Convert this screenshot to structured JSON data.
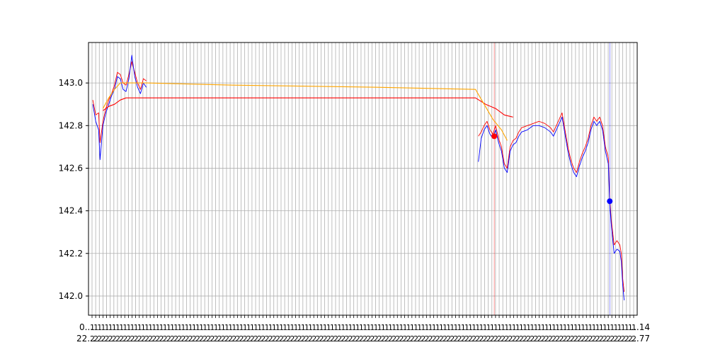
{
  "chart_data": {
    "type": "line",
    "title": "",
    "xlabel": "",
    "ylabel": "",
    "ylim": [
      141.91,
      143.19
    ],
    "y_ticks": [
      142.0,
      142.2,
      142.4,
      142.6,
      142.8,
      143.0
    ],
    "y_tick_labels": [
      "142.0",
      "142.2",
      "142.4",
      "142.6",
      "142.8",
      "143.0"
    ],
    "x_tick_label_rows": [
      "0...",
      "22...",
      "...14",
      "...77"
    ],
    "grid": true,
    "legend": "none",
    "series": [
      {
        "name": "price-high",
        "color": "#ff0000",
        "segments": [
          [
            [
              3,
              142.92
            ],
            [
              5,
              142.85
            ],
            [
              7,
              142.86
            ],
            [
              8,
              142.72
            ],
            [
              10,
              142.82
            ],
            [
              12,
              142.88
            ],
            [
              14,
              142.92
            ],
            [
              16,
              142.95
            ],
            [
              18,
              142.99
            ],
            [
              20,
              143.05
            ],
            [
              22,
              143.04
            ],
            [
              24,
              143.0
            ],
            [
              26,
              142.99
            ],
            [
              28,
              143.04
            ],
            [
              30,
              143.1
            ],
            [
              32,
              143.05
            ],
            [
              34,
              143.0
            ],
            [
              36,
              142.97
            ],
            [
              38,
              143.02
            ],
            [
              40,
              143.01
            ]
          ],
          [
            [
              270,
              142.75
            ],
            [
              272,
              142.77
            ],
            [
              274,
              142.8
            ],
            [
              276,
              142.82
            ],
            [
              278,
              142.78
            ],
            [
              280,
              142.76
            ],
            [
              282,
              142.8
            ],
            [
              284,
              142.74
            ],
            [
              286,
              142.7
            ],
            [
              288,
              142.62
            ],
            [
              290,
              142.6
            ],
            [
              292,
              142.7
            ],
            [
              294,
              142.73
            ],
            [
              296,
              142.74
            ],
            [
              298,
              142.77
            ],
            [
              300,
              142.79
            ],
            [
              304,
              142.8
            ],
            [
              308,
              142.81
            ],
            [
              312,
              142.82
            ],
            [
              316,
              142.81
            ],
            [
              320,
              142.79
            ],
            [
              322,
              142.77
            ],
            [
              324,
              142.8
            ],
            [
              326,
              142.83
            ],
            [
              328,
              142.86
            ],
            [
              330,
              142.78
            ],
            [
              332,
              142.7
            ],
            [
              334,
              142.64
            ],
            [
              336,
              142.6
            ],
            [
              338,
              142.58
            ],
            [
              340,
              142.63
            ],
            [
              342,
              142.67
            ],
            [
              344,
              142.7
            ],
            [
              346,
              142.74
            ],
            [
              348,
              142.8
            ],
            [
              350,
              142.84
            ],
            [
              352,
              142.82
            ],
            [
              354,
              142.84
            ],
            [
              356,
              142.8
            ],
            [
              358,
              142.7
            ],
            [
              360,
              142.65
            ],
            [
              361,
              142.45
            ],
            [
              362,
              142.36
            ],
            [
              364,
              142.24
            ],
            [
              366,
              142.26
            ],
            [
              368,
              142.24
            ],
            [
              369,
              142.2
            ],
            [
              370,
              142.08
            ],
            [
              371,
              142.02
            ]
          ]
        ]
      },
      {
        "name": "price-low",
        "color": "#0000ff",
        "segments": [
          [
            [
              3,
              142.9
            ],
            [
              5,
              142.82
            ],
            [
              7,
              142.78
            ],
            [
              8,
              142.64
            ],
            [
              10,
              142.8
            ],
            [
              12,
              142.86
            ],
            [
              14,
              142.9
            ],
            [
              16,
              142.94
            ],
            [
              18,
              142.97
            ],
            [
              20,
              143.03
            ],
            [
              22,
              143.02
            ],
            [
              24,
              142.97
            ],
            [
              26,
              142.96
            ],
            [
              28,
              143.02
            ],
            [
              30,
              143.13
            ],
            [
              32,
              143.03
            ],
            [
              34,
              142.98
            ],
            [
              36,
              142.95
            ],
            [
              38,
              143.0
            ],
            [
              40,
              142.98
            ]
          ],
          [
            [
              270,
              142.63
            ],
            [
              272,
              142.74
            ],
            [
              274,
              142.78
            ],
            [
              276,
              142.8
            ],
            [
              278,
              142.76
            ],
            [
              280,
              142.74
            ],
            [
              282,
              142.78
            ],
            [
              284,
              142.72
            ],
            [
              286,
              142.68
            ],
            [
              288,
              142.6
            ],
            [
              290,
              142.58
            ],
            [
              292,
              142.68
            ],
            [
              294,
              142.71
            ],
            [
              296,
              142.72
            ],
            [
              298,
              142.75
            ],
            [
              300,
              142.77
            ],
            [
              304,
              142.78
            ],
            [
              308,
              142.8
            ],
            [
              312,
              142.8
            ],
            [
              316,
              142.79
            ],
            [
              320,
              142.77
            ],
            [
              322,
              142.75
            ],
            [
              324,
              142.78
            ],
            [
              326,
              142.81
            ],
            [
              328,
              142.84
            ],
            [
              330,
              142.76
            ],
            [
              332,
              142.68
            ],
            [
              334,
              142.62
            ],
            [
              336,
              142.58
            ],
            [
              338,
              142.56
            ],
            [
              340,
              142.61
            ],
            [
              342,
              142.65
            ],
            [
              344,
              142.68
            ],
            [
              346,
              142.72
            ],
            [
              348,
              142.78
            ],
            [
              350,
              142.82
            ],
            [
              352,
              142.8
            ],
            [
              354,
              142.82
            ],
            [
              356,
              142.78
            ],
            [
              358,
              142.68
            ],
            [
              360,
              142.62
            ],
            [
              361,
              142.43
            ],
            [
              362,
              142.34
            ],
            [
              364,
              142.2
            ],
            [
              366,
              142.22
            ],
            [
              368,
              142.21
            ],
            [
              369,
              142.16
            ],
            [
              370,
              142.05
            ],
            [
              371,
              141.98
            ]
          ]
        ]
      },
      {
        "name": "average-red",
        "color": "#ff0000",
        "segments": [
          [
            [
              10,
              142.87
            ],
            [
              14,
              142.89
            ],
            [
              18,
              142.9
            ],
            [
              22,
              142.92
            ],
            [
              26,
              142.93
            ],
            [
              40,
              142.93
            ],
            [
              100,
              142.93
            ],
            [
              200,
              142.93
            ],
            [
              268,
              142.93
            ],
            [
              275,
              142.9
            ],
            [
              282,
              142.88
            ],
            [
              288,
              142.85
            ],
            [
              294,
              142.84
            ]
          ]
        ]
      },
      {
        "name": "average-orange",
        "color": "#ffa500",
        "segments": [
          [
            [
              10,
              142.88
            ],
            [
              14,
              142.93
            ],
            [
              18,
              142.97
            ],
            [
              22,
              143.0
            ],
            [
              26,
              143.0
            ],
            [
              40,
              143.0
            ],
            [
              100,
              142.99
            ],
            [
              200,
              142.98
            ],
            [
              268,
              142.97
            ],
            [
              274,
              142.9
            ],
            [
              280,
              142.83
            ],
            [
              286,
              142.78
            ],
            [
              290,
              142.73
            ]
          ]
        ]
      }
    ],
    "markers": [
      {
        "name": "red-marker",
        "x": 281,
        "y": 142.75,
        "color": "#ff0000"
      },
      {
        "name": "blue-marker",
        "x": 361,
        "y": 142.445,
        "color": "#0000ff"
      }
    ],
    "vertical_lines": [
      {
        "name": "red-vertical-line",
        "x": 281,
        "color": "#ff0000"
      },
      {
        "name": "blue-vertical-line",
        "x": 361,
        "color": "#0000ff"
      }
    ],
    "x_range": [
      0,
      380
    ],
    "x_gridline_count": 150
  }
}
